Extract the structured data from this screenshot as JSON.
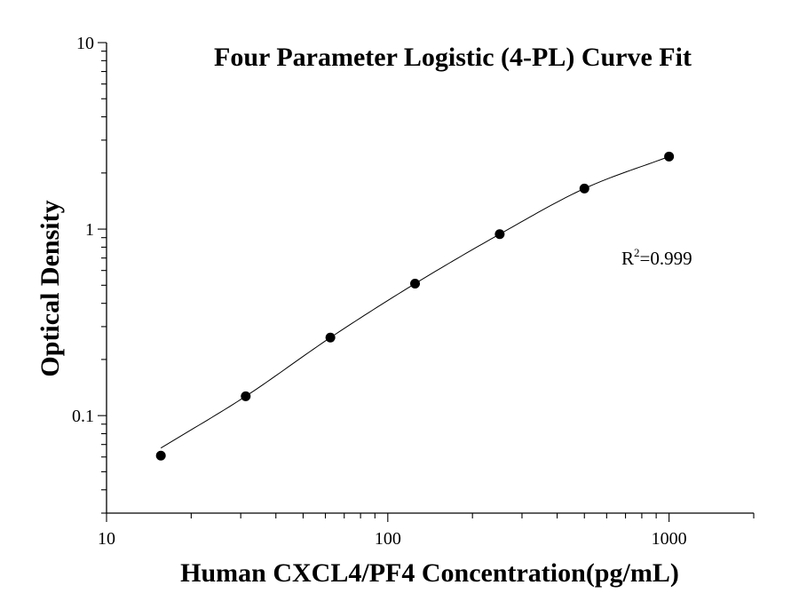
{
  "chart_data": {
    "type": "scatter",
    "title": "Four Parameter Logistic (4-PL) Curve Fit",
    "xlabel": "Human CXCL4/PF4 Concentration(pg/mL)",
    "ylabel": "Optical Density",
    "xscale": "log",
    "yscale": "log",
    "xlim": [
      10,
      2000
    ],
    "ylim": [
      0.03,
      10
    ],
    "x_ticks": [
      {
        "value": 10,
        "label": "10"
      },
      {
        "value": 100,
        "label": "100"
      },
      {
        "value": 1000,
        "label": "1000"
      }
    ],
    "y_ticks": [
      {
        "value": 0.1,
        "label": "0.1"
      },
      {
        "value": 1,
        "label": "1"
      },
      {
        "value": 10,
        "label": "10"
      }
    ],
    "series": [
      {
        "x": [
          15.6,
          31.25,
          62.5,
          125,
          250,
          500,
          1000
        ],
        "y": [
          0.061,
          0.127,
          0.262,
          0.51,
          0.94,
          1.65,
          2.45
        ]
      }
    ],
    "fit_curve": {
      "x_range": [
        15.6,
        1000
      ],
      "y_range": [
        0.067,
        2.45
      ]
    },
    "annotation": {
      "base": "R",
      "superscript": "2",
      "value": "=0.999"
    },
    "grid": false,
    "legend": "none"
  }
}
